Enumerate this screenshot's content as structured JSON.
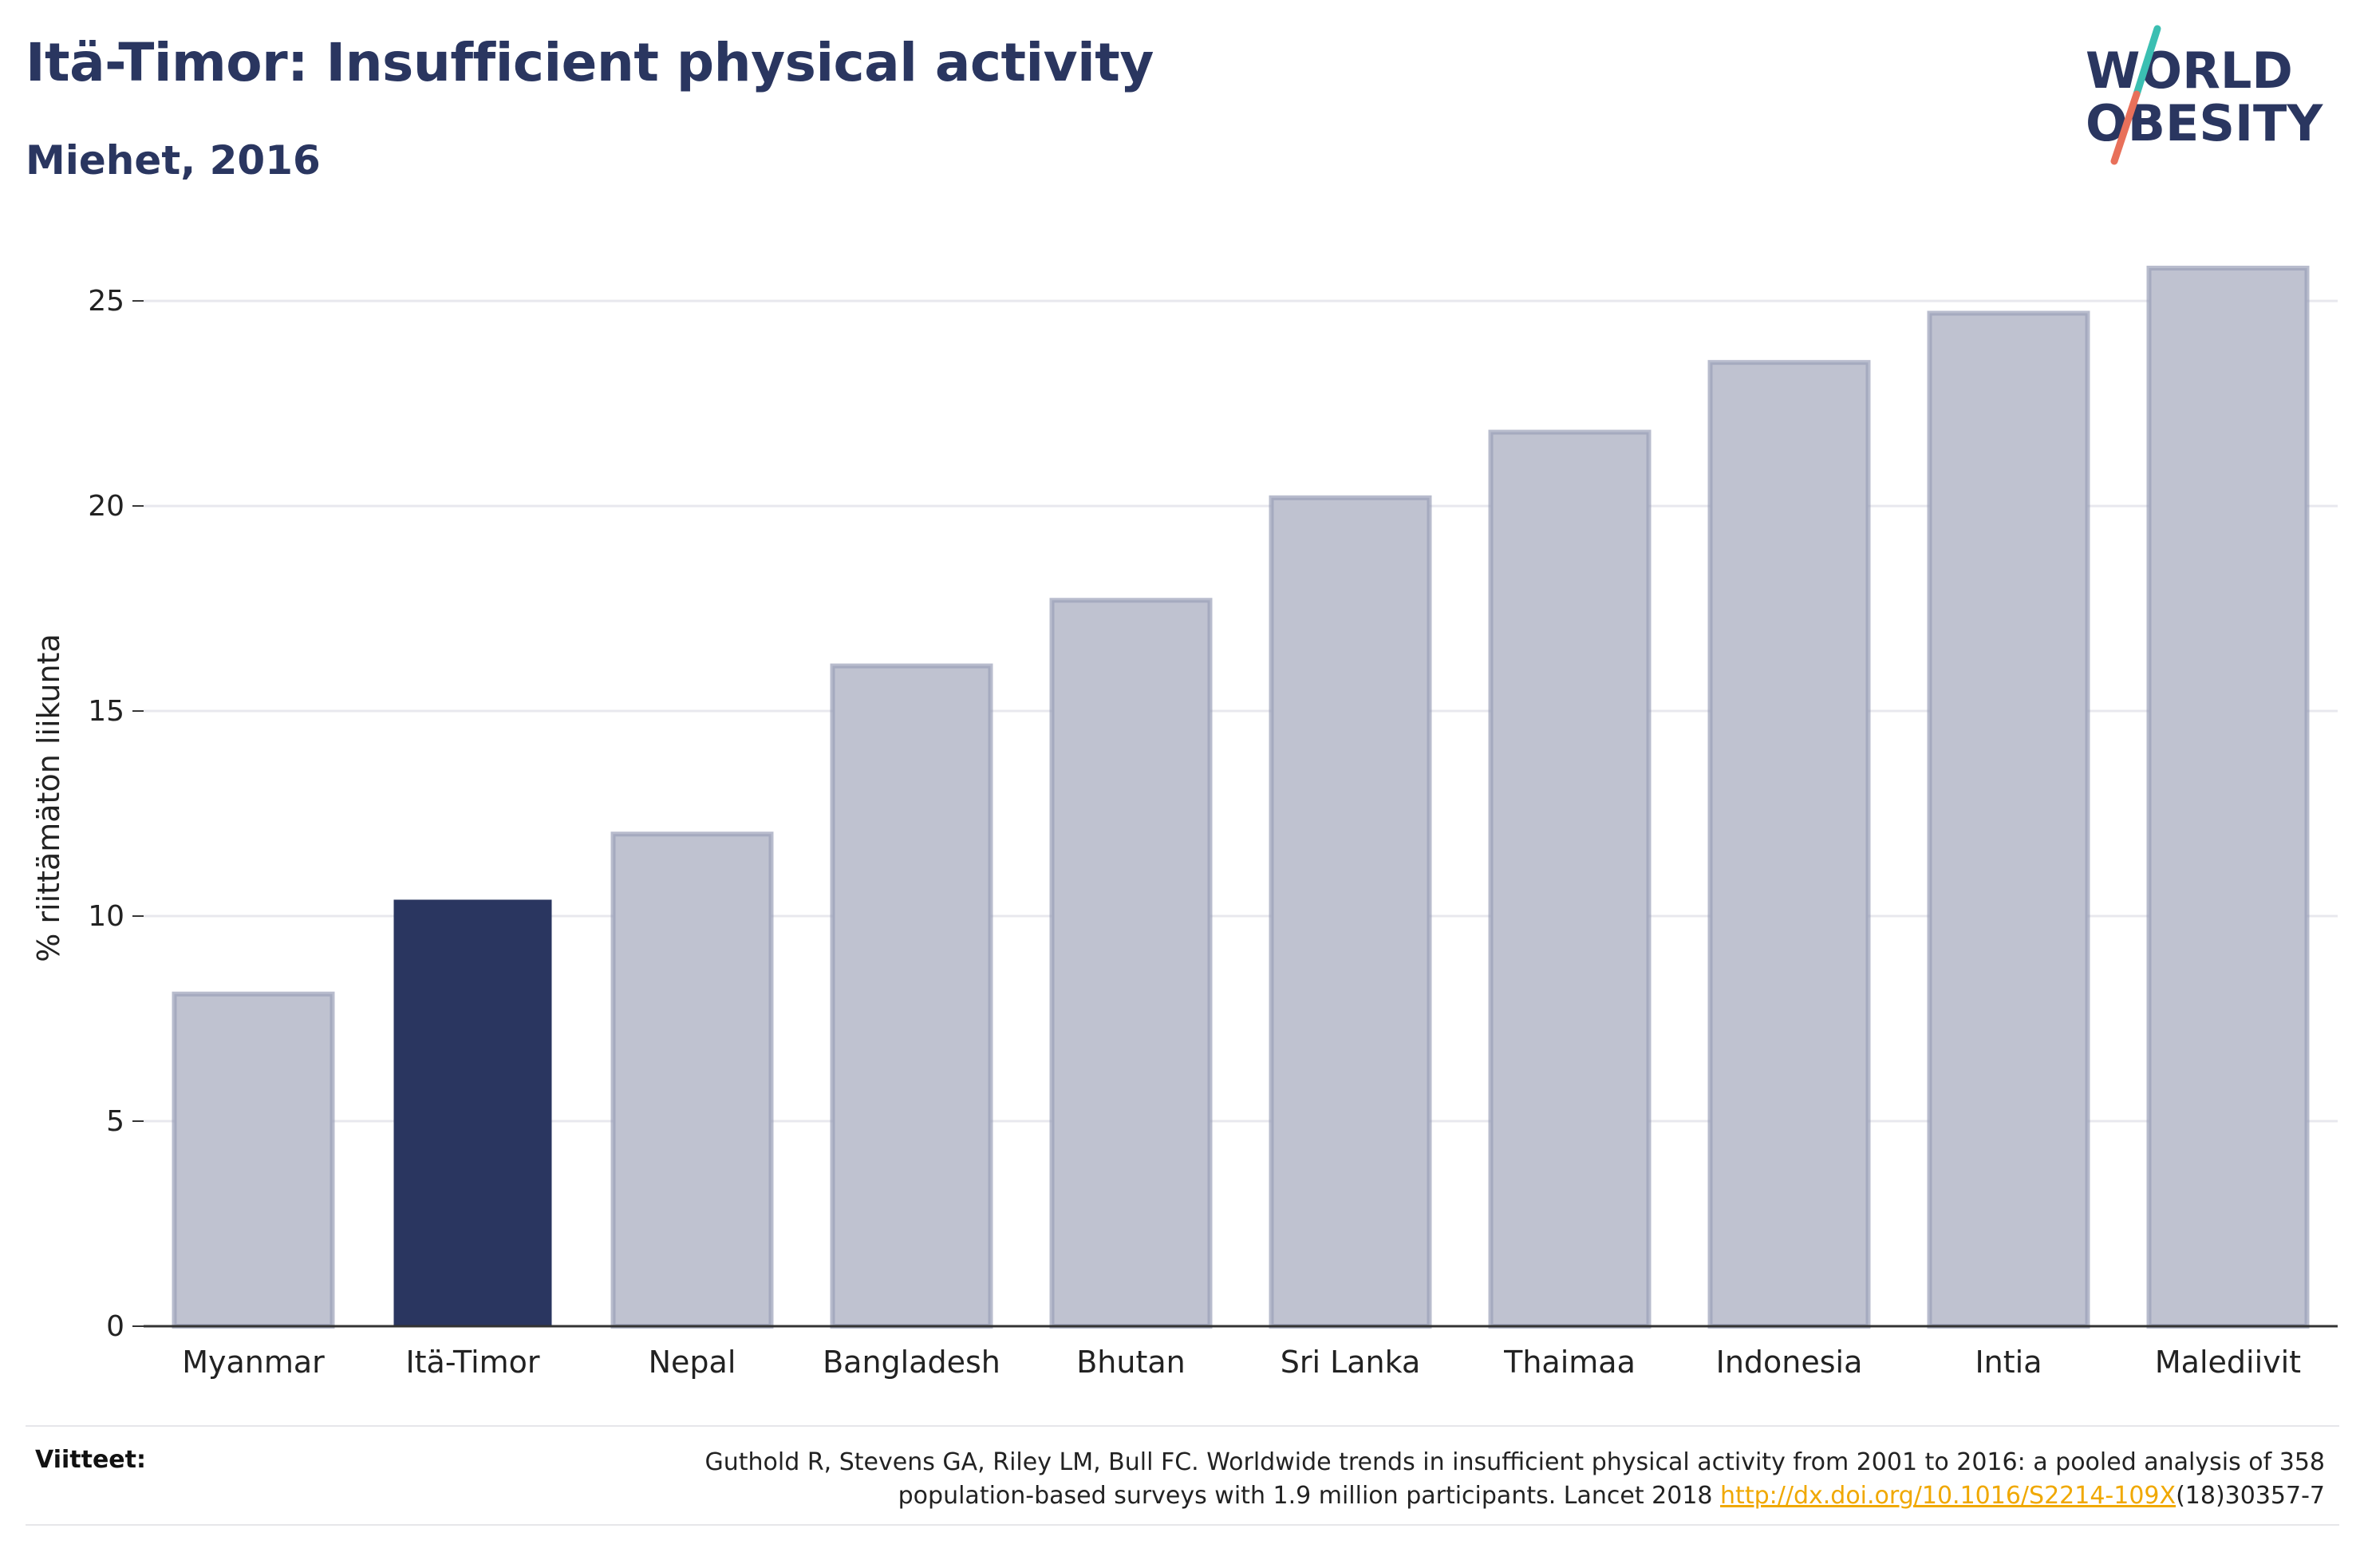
{
  "header": {
    "title": "Itä-Timor: Insufficient physical activity",
    "subtitle": "Miehet, 2016"
  },
  "logo": {
    "line1": "WORLD",
    "line2": "OBESITY",
    "colors": {
      "text": "#2a3660",
      "slash_teal": "#3bbfb2",
      "slash_coral": "#e8705a"
    }
  },
  "chart_data": {
    "type": "bar",
    "categories": [
      "Myanmar",
      "Itä-Timor",
      "Nepal",
      "Bangladesh",
      "Bhutan",
      "Sri Lanka",
      "Thaimaa",
      "Indonesia",
      "Intia",
      "Malediivit"
    ],
    "values": [
      8.1,
      10.4,
      12.0,
      16.1,
      17.7,
      20.2,
      21.8,
      23.5,
      24.7,
      25.8
    ],
    "highlight": "Itä-Timor",
    "ylabel": "% riittämätön liikunta",
    "xlabel": "",
    "ylim": [
      0,
      26.5
    ],
    "yticks": [
      0,
      5,
      10,
      15,
      20,
      25
    ],
    "grid": true,
    "colors": {
      "highlight": "#2a3660",
      "other": "#bfc2d0",
      "other_border": "#9aa0b8"
    }
  },
  "footer": {
    "refs_label": "Viitteet:",
    "refs_text_1": "Guthold R, Stevens GA, Riley LM, Bull FC. Worldwide trends in insufficient physical activity from 2001 to 2016: a pooled analysis of 358",
    "refs_text_2": "population-based surveys with 1.9 million participants. Lancet 2018 ",
    "refs_link": "http://dx.doi.org/10.1016/S2214-109X",
    "refs_text_3": "(18)30357-7"
  }
}
